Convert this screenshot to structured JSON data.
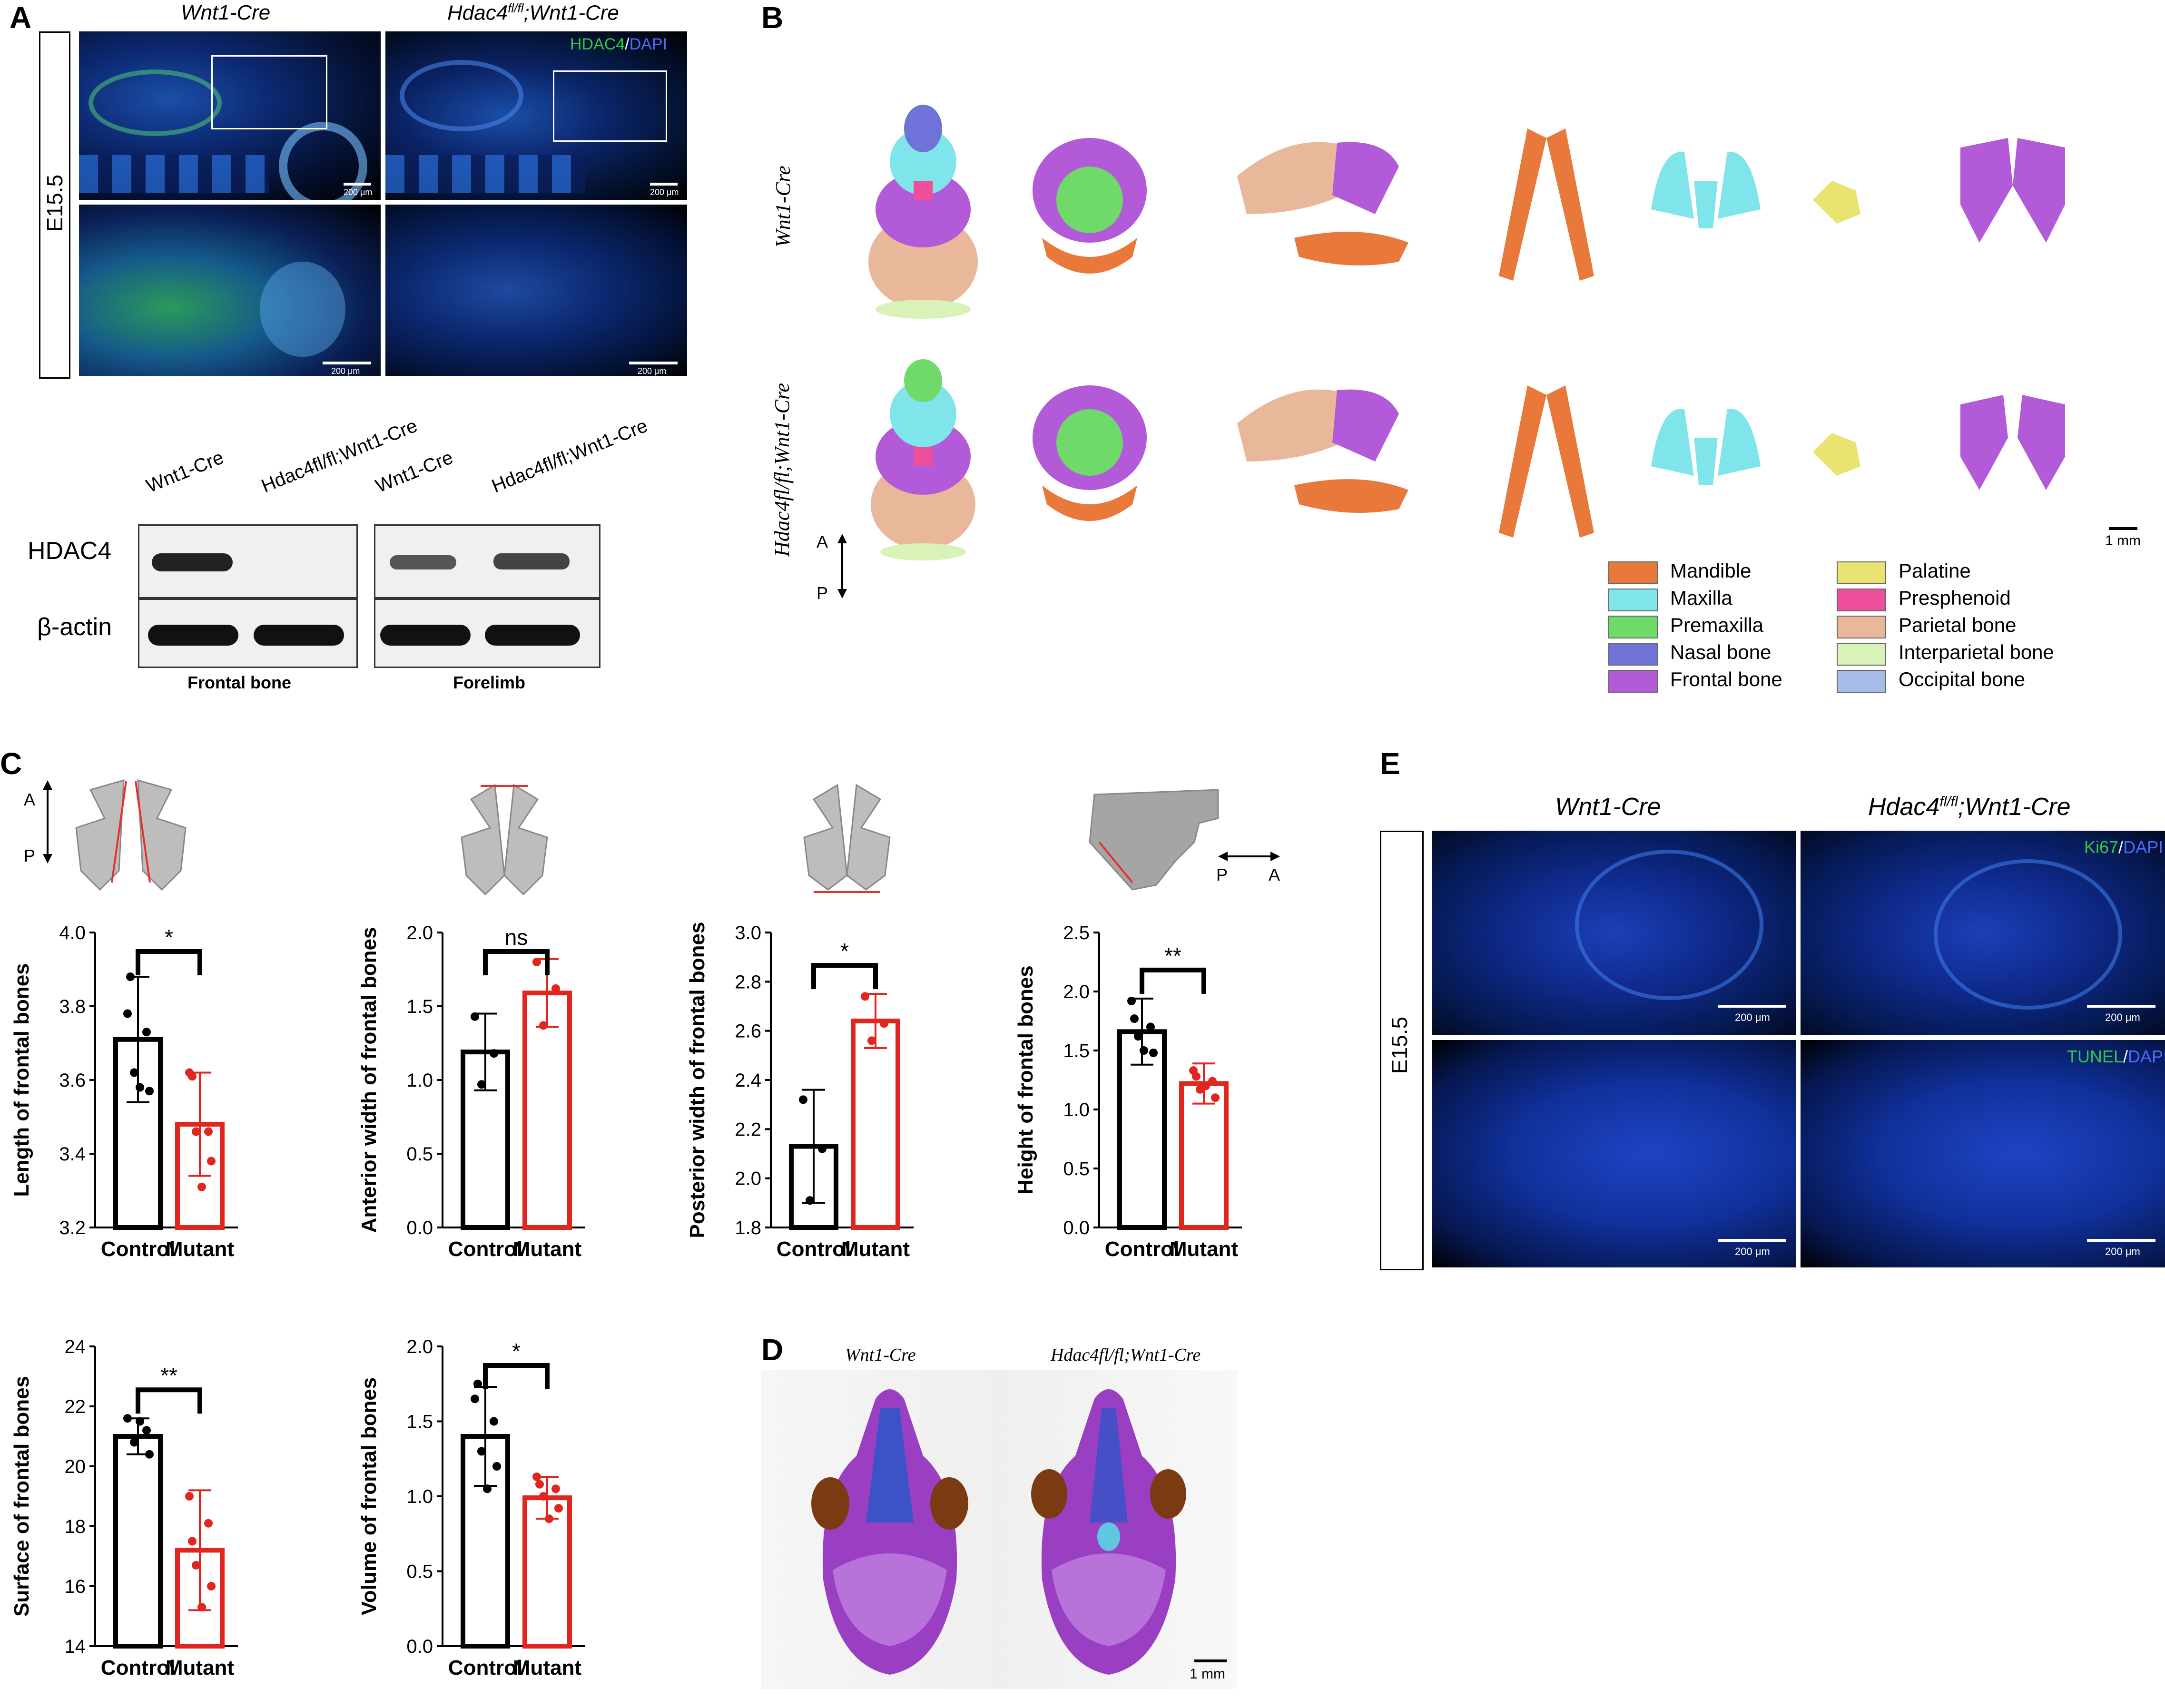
{
  "panels": {
    "A": "A",
    "B": "B",
    "C": "C",
    "D": "D",
    "E": "E"
  },
  "panelA": {
    "col1": "Wnt1-Cre",
    "col2_prefix": "Hdac4",
    "col2_sup": "fl/fl",
    "col2_suffix": ";Wnt1-Cre",
    "stage": "E15.5",
    "stain_green": "HDAC4",
    "stain_sep": "/",
    "stain_blue": "DAPI",
    "scale": "200 μm",
    "wb": {
      "lanes": [
        "Wnt1-Cre",
        "Hdac4fl/fl;Wnt1-Cre",
        "Wnt1-Cre",
        "Hdac4fl/fl;Wnt1-Cre"
      ],
      "rows": [
        "HDAC4",
        "β-actin"
      ],
      "groups": [
        "Frontal bone",
        "Forelimb"
      ]
    }
  },
  "panelB": {
    "row1": "Wnt1-Cre",
    "row2": "Hdac4fl/fl;Wnt1-Cre",
    "axis_a": "A",
    "axis_p": "P",
    "scale": "1 mm",
    "legend": [
      {
        "label": "Mandible",
        "color": "#e8793a"
      },
      {
        "label": "Maxilla",
        "color": "#7fe5ea"
      },
      {
        "label": "Premaxilla",
        "color": "#6fd96a"
      },
      {
        "label": "Nasal bone",
        "color": "#6f72d6"
      },
      {
        "label": "Frontal bone",
        "color": "#b35ad9"
      },
      {
        "label": "Palatine",
        "color": "#e8e46f"
      },
      {
        "label": "Presphenoid",
        "color": "#ef4f9a"
      },
      {
        "label": "Parietal bone",
        "color": "#e9b89a"
      },
      {
        "label": "Interparietal bone",
        "color": "#d8f2b8"
      },
      {
        "label": "Occipital bone",
        "color": "#a6bde8"
      }
    ]
  },
  "panelC": {
    "axis_a": "A",
    "axis_p": "P",
    "categories": [
      "Control",
      "Mutant"
    ]
  },
  "chart_data": [
    {
      "type": "bar",
      "ylabel": "Length of frontal bones",
      "categories": [
        "Control",
        "Mutant"
      ],
      "values": [
        3.71,
        3.48
      ],
      "errors": [
        0.17,
        0.14
      ],
      "ylim": [
        3.2,
        4.0
      ],
      "ticks": [
        "3.2",
        "3.4",
        "3.6",
        "3.8",
        "4.0"
      ],
      "points": [
        [
          3.78,
          3.73,
          3.62,
          3.57,
          3.58,
          3.88
        ],
        [
          3.62,
          3.46,
          3.46,
          3.38,
          3.31,
          3.61
        ]
      ],
      "significance": "*"
    },
    {
      "type": "bar",
      "ylabel": "Anterior width of frontal bones",
      "categories": [
        "Control",
        "Mutant"
      ],
      "values": [
        1.19,
        1.59
      ],
      "errors": [
        0.26,
        0.23
      ],
      "ylim": [
        0.0,
        2.0
      ],
      "ticks": [
        "0.0",
        "0.5",
        "1.0",
        "1.5",
        "2.0"
      ],
      "points": [
        [
          1.43,
          1.18,
          0.97
        ],
        [
          1.8,
          1.62,
          1.37
        ]
      ],
      "significance": "ns"
    },
    {
      "type": "bar",
      "ylabel": "Posterior width of frontal bones",
      "categories": [
        "Control",
        "Mutant"
      ],
      "values": [
        2.13,
        2.64
      ],
      "errors": [
        0.23,
        0.11
      ],
      "ylim": [
        1.8,
        3.0
      ],
      "ticks": [
        "1.8",
        "2.0",
        "2.2",
        "2.4",
        "2.6",
        "2.8",
        "3.0"
      ],
      "points": [
        [
          2.32,
          2.12,
          1.91
        ],
        [
          2.74,
          2.63,
          2.56
        ]
      ],
      "significance": "*"
    },
    {
      "type": "bar",
      "ylabel": "Height of frontal bones",
      "categories": [
        "Control",
        "Mutant"
      ],
      "values": [
        1.66,
        1.22
      ],
      "errors": [
        0.28,
        0.17
      ],
      "ylim": [
        0.0,
        2.5
      ],
      "ticks": [
        "0.0",
        "0.5",
        "1.0",
        "1.5",
        "2.0",
        "2.5"
      ],
      "points": [
        [
          1.92,
          1.7,
          1.62,
          1.48,
          1.5,
          1.77
        ],
        [
          1.33,
          1.24,
          1.17,
          1.1,
          1.2,
          1.28
        ]
      ],
      "significance": "**"
    },
    {
      "type": "bar",
      "ylabel": "Surface of frontal bones",
      "categories": [
        "Control",
        "Mutant"
      ],
      "values": [
        21.0,
        17.2
      ],
      "errors": [
        0.6,
        2.0
      ],
      "ylim": [
        14,
        24
      ],
      "ticks": [
        "14",
        "16",
        "18",
        "20",
        "22",
        "24"
      ],
      "points": [
        [
          21.6,
          21.2,
          20.8,
          20.4,
          21.5
        ],
        [
          19.0,
          18.1,
          16.7,
          16.0,
          15.3,
          17.5
        ]
      ],
      "significance": "**"
    },
    {
      "type": "bar",
      "ylabel": "Volume of frontal bones",
      "categories": [
        "Control",
        "Mutant"
      ],
      "values": [
        1.4,
        0.99
      ],
      "errors": [
        0.33,
        0.14
      ],
      "ylim": [
        0.0,
        2.0
      ],
      "ticks": [
        "0.0",
        "0.5",
        "1.0",
        "1.5",
        "2.0"
      ],
      "points": [
        [
          1.65,
          1.5,
          1.3,
          1.2,
          1.05,
          1.75
        ],
        [
          1.13,
          1.05,
          1.0,
          0.92,
          0.85,
          1.08
        ]
      ],
      "significance": "*"
    }
  ],
  "panelD": {
    "col1": "Wnt1-Cre",
    "col2": "Hdac4fl/fl;Wnt1-Cre",
    "scale": "1 mm"
  },
  "panelE": {
    "col1": "Wnt1-Cre",
    "col2_prefix": "Hdac4",
    "col2_sup": "fl/fl",
    "col2_suffix": ";Wnt1-Cre",
    "stage": "E15.5",
    "stain1_green": "Ki67",
    "stain2_green": "TUNEL",
    "stain_sep": "/",
    "stain_blue": "DAPI",
    "scale": "200 μm"
  }
}
